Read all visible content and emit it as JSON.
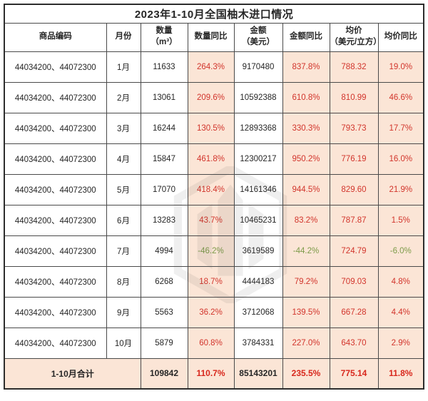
{
  "title": "2023年1-10月全国柚木进口情况",
  "colors": {
    "shaded_cell_bg": "#fbe5d6",
    "positive_text": "#d2342b",
    "negative_text": "#7d9b49",
    "body_text": "#262626",
    "grid_border": "#4a4a4a"
  },
  "watermark": {
    "name": "emblem-logo-watermark"
  },
  "table": {
    "headers": [
      {
        "line1": "商品编码",
        "line2": ""
      },
      {
        "line1": "月份",
        "line2": ""
      },
      {
        "line1": "数量",
        "line2": "（m³）"
      },
      {
        "line1": "数量同比",
        "line2": ""
      },
      {
        "line1": "金额",
        "line2": "（美元）"
      },
      {
        "line1": "金额同比",
        "line2": ""
      },
      {
        "line1": "均价",
        "line2": "（美元/立方）"
      },
      {
        "line1": "均价同比",
        "line2": ""
      }
    ],
    "row_fields": [
      "code",
      "month",
      "qty",
      "qty_yoy",
      "amount",
      "amount_yoy",
      "price",
      "price_yoy"
    ],
    "shaded_fields": [
      "qty_yoy",
      "amount_yoy",
      "price",
      "price_yoy"
    ],
    "colored_fields": [
      "qty_yoy",
      "amount_yoy",
      "price",
      "price_yoy"
    ],
    "rows": [
      {
        "code": "44034200、44072300",
        "month": "1月",
        "qty": "11633",
        "qty_yoy": "264.3%",
        "amount": "9170480",
        "amount_yoy": "837.8%",
        "price": "788.32",
        "price_yoy": "19.0%"
      },
      {
        "code": "44034200、44072300",
        "month": "2月",
        "qty": "13061",
        "qty_yoy": "209.6%",
        "amount": "10592388",
        "amount_yoy": "610.8%",
        "price": "810.99",
        "price_yoy": "46.6%"
      },
      {
        "code": "44034200、44072300",
        "month": "3月",
        "qty": "16244",
        "qty_yoy": "130.5%",
        "amount": "12893368",
        "amount_yoy": "330.3%",
        "price": "793.73",
        "price_yoy": "17.7%"
      },
      {
        "code": "44034200、44072300",
        "month": "4月",
        "qty": "15847",
        "qty_yoy": "461.8%",
        "amount": "12300217",
        "amount_yoy": "950.2%",
        "price": "776.19",
        "price_yoy": "16.0%"
      },
      {
        "code": "44034200、44072300",
        "month": "5月",
        "qty": "17070",
        "qty_yoy": "418.4%",
        "amount": "14161346",
        "amount_yoy": "944.5%",
        "price": "829.60",
        "price_yoy": "21.9%"
      },
      {
        "code": "44034200、44072300",
        "month": "6月",
        "qty": "13283",
        "qty_yoy": "43.7%",
        "amount": "10465231",
        "amount_yoy": "83.2%",
        "price": "787.87",
        "price_yoy": "1.5%"
      },
      {
        "code": "44034200、44072300",
        "month": "7月",
        "qty": "4994",
        "qty_yoy": "-46.2%",
        "amount": "3619589",
        "amount_yoy": "-44.2%",
        "price": "724.79",
        "price_yoy": "-6.0%"
      },
      {
        "code": "44034200、44072300",
        "month": "8月",
        "qty": "6268",
        "qty_yoy": "18.7%",
        "amount": "4444183",
        "amount_yoy": "79.2%",
        "price": "709.03",
        "price_yoy": "4.8%"
      },
      {
        "code": "44034200、44072300",
        "month": "9月",
        "qty": "5563",
        "qty_yoy": "36.2%",
        "amount": "3712068",
        "amount_yoy": "139.5%",
        "price": "667.28",
        "price_yoy": "4.4%"
      },
      {
        "code": "44034200、44072300",
        "month": "10月",
        "qty": "5879",
        "qty_yoy": "60.8%",
        "amount": "3784331",
        "amount_yoy": "227.0%",
        "price": "643.70",
        "price_yoy": "2.9%"
      }
    ],
    "total": {
      "label": "1-10月合计",
      "qty": "109842",
      "qty_yoy": "110.7%",
      "amount": "85143201",
      "amount_yoy": "235.5%",
      "price": "775.14",
      "price_yoy": "11.8%"
    }
  }
}
